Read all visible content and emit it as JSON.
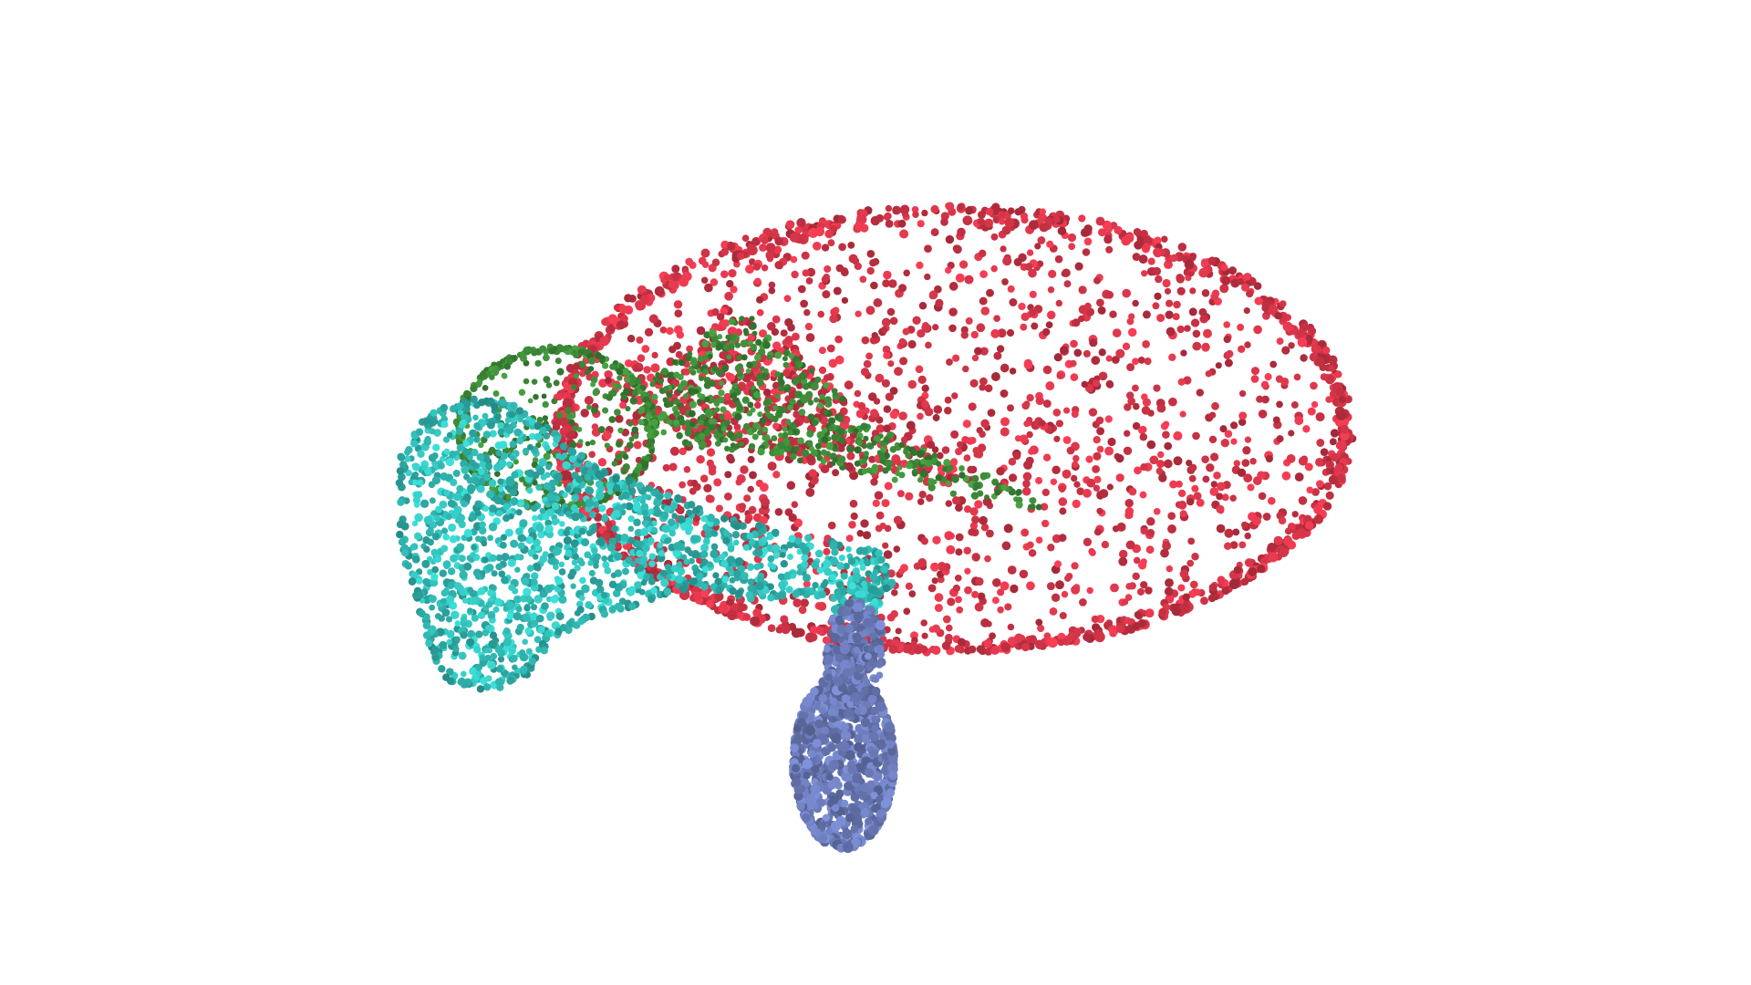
{
  "scene": {
    "background": "#ffffff",
    "parts": [
      {
        "name": "red-disk-part",
        "color": "#d9364a"
      },
      {
        "name": "green-arm-part",
        "color": "#3f8f3a"
      },
      {
        "name": "cyan-body-part",
        "color": "#34c4be"
      },
      {
        "name": "blue-stem-part",
        "color": "#6f7fbf"
      }
    ]
  }
}
